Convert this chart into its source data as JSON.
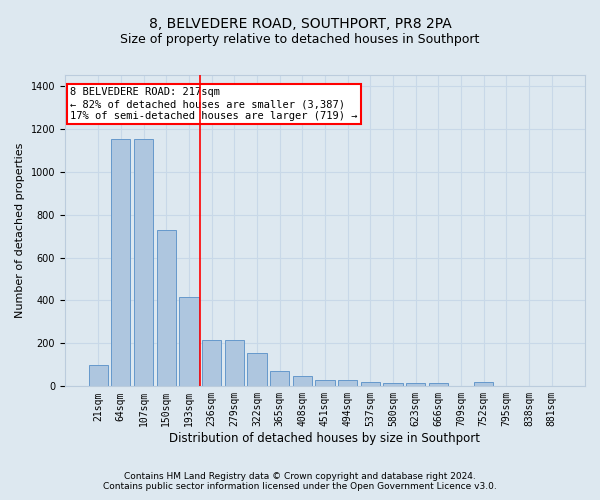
{
  "title": "8, BELVEDERE ROAD, SOUTHPORT, PR8 2PA",
  "subtitle": "Size of property relative to detached houses in Southport",
  "xlabel": "Distribution of detached houses by size in Southport",
  "ylabel": "Number of detached properties",
  "footer_line1": "Contains HM Land Registry data © Crown copyright and database right 2024.",
  "footer_line2": "Contains public sector information licensed under the Open Government Licence v3.0.",
  "categories": [
    "21sqm",
    "64sqm",
    "107sqm",
    "150sqm",
    "193sqm",
    "236sqm",
    "279sqm",
    "322sqm",
    "365sqm",
    "408sqm",
    "451sqm",
    "494sqm",
    "537sqm",
    "580sqm",
    "623sqm",
    "666sqm",
    "709sqm",
    "752sqm",
    "795sqm",
    "838sqm",
    "881sqm"
  ],
  "values": [
    100,
    1150,
    1150,
    730,
    415,
    215,
    215,
    155,
    70,
    50,
    30,
    30,
    18,
    15,
    15,
    15,
    0,
    18,
    0,
    0,
    0
  ],
  "bar_color": "#aec6df",
  "bar_edge_color": "#6699cc",
  "red_line_index": 4.5,
  "annotation_text_line1": "8 BELVEDERE ROAD: 217sqm",
  "annotation_text_line2": "← 82% of detached houses are smaller (3,387)",
  "annotation_text_line3": "17% of semi-detached houses are larger (719) →",
  "annotation_box_color": "white",
  "annotation_box_edge_color": "red",
  "ylim": [
    0,
    1450
  ],
  "yticks": [
    0,
    200,
    400,
    600,
    800,
    1000,
    1200,
    1400
  ],
  "grid_color": "#c8d8e8",
  "background_color": "#dde8f0",
  "axes_background_color": "#dde8f0",
  "title_fontsize": 10,
  "subtitle_fontsize": 9,
  "ylabel_fontsize": 8,
  "xlabel_fontsize": 8.5,
  "footer_fontsize": 6.5,
  "tick_fontsize": 7,
  "annotation_fontsize": 7.5
}
